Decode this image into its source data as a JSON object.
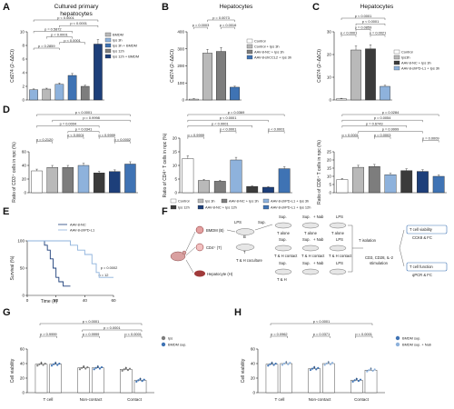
{
  "panel_letters": [
    "A",
    "B",
    "C",
    "D",
    "E",
    "F",
    "G",
    "H"
  ],
  "titles": {
    "A_line1": "Cultured primary",
    "A_line2": "hepatocytes",
    "B": "Hepatocytes",
    "C": "Hepatocytes"
  },
  "ylabels": {
    "cd274": "Cd274 (2−ΔΔCt)",
    "cd3": "Ratio of CD3⁺ cells in npc (%)",
    "cd4": "Ratio of CD4⁺ T cells in npc (%)",
    "cd8": "Ratio of CD8⁺ T cells in npc (%)",
    "survival": "Survival (%)",
    "viability": "Cell viability",
    "time": "Time (h)"
  },
  "colors": {
    "ctrl": "#ffffff",
    "ips": "#b9b9b9",
    "ips_dark": "#7d7d7d",
    "bmdm": "#3b3b3b",
    "blue_light": "#8eb2dc",
    "blue_mid": "#3f73b4",
    "blue_dark": "#1d3f7a",
    "line_dark": "#1d3f7a",
    "line_light": "#8eb2dc"
  },
  "legendA": [
    "BMDM",
    "Ips 3h",
    "Ips 3h + BMDM",
    "Ips 12h",
    "Ips 12h + BMDM"
  ],
  "legendB": [
    "Control",
    "Control + Ips 3h",
    "AAV-8-NC + Ips 3h",
    "AAV-8-shCCL2 + Ips 3h"
  ],
  "legendC": [
    "Control",
    "Ips3h",
    "AAV-8-NC + Ips 3h",
    "AAV-8-shPD-L1 + Ips 3h"
  ],
  "legendD": [
    "Control",
    "Ips 3h",
    "AAV-8-NC + Ips 3h",
    "AAV-8-shPD-L1 + Ips 3h",
    "Ips 12h",
    "AAV-8-NC + Ips 12h",
    "AAV-8-shPD-L1 + Ips 12h"
  ],
  "legendE": [
    "AAV-8-NC",
    "AAV-8-shPD-L1"
  ],
  "legendG": [
    "Ips",
    "BMDM sup."
  ],
  "legendH": [
    "BMDM sup.",
    "BMDM sup. + Nab"
  ],
  "sigA": [
    "p < 0.0001",
    "p < 0.0001",
    "p = 0.5872",
    "p < 0.0001",
    "p < 0.0001",
    "p = 0.2859"
  ],
  "sigB": [
    "p = 0.0073",
    "p = 0.0003",
    "p = 0.0016"
  ],
  "sigC": [
    "p < 0.0001",
    "p < 0.0001",
    "p = 0.0859",
    "p < 0.0001",
    "p = 0.0021"
  ],
  "sigD1": [
    "p < 0.0001",
    "p = 0.9998",
    "p = 0.0004",
    "p = 0.0341",
    "p = 0.2120",
    "p < 0.0001",
    "p = 0.9999",
    "p = 0.0002"
  ],
  "sigD2": [
    "p = 0.0369",
    "p < 0.0001",
    "p < 0.0001",
    "p < 0.0001",
    "p < 0.0001",
    "p = 0.9999"
  ],
  "sigD3": [
    "p = 0.0284",
    "p = 0.0054",
    "p = 0.6743",
    "p = 0.9999",
    "p < 0.0001",
    "p = 0.0003",
    "p = 0.0009"
  ],
  "sigE": [
    "p = 0.0002",
    "n = 12"
  ],
  "sigG": [
    "p < 0.0001",
    "p = 0.0001",
    "p > 0.9999",
    "p = 0.9999",
    "p < 0.0001"
  ],
  "sigH": [
    "p < 0.0001",
    "p = 0.0962",
    "p = 0.0371",
    "p < 0.0001"
  ],
  "groupsGH": [
    "T cell",
    "Non-contact",
    "Contact"
  ],
  "schematic": {
    "bmdm": "BMDM (B)",
    "cd4": "CD4⁺ (T)",
    "hep": "Hepatocyte (H)",
    "lps": "LPS",
    "sup": "Sup.",
    "coculture": "T & H coculture",
    "nab": "+ Nab",
    "talone": "T alone",
    "th_contact": "T & H contact",
    "th_noncontact": "T & H\nNon-contact",
    "tiso": "T isolation",
    "stim1": "CD3, CD28, IL-2",
    "stim2": "stimulation",
    "via1": "T cell viability",
    "via2": "CCK8 & FC",
    "fun1": "T cell function",
    "fun2": "qPCR & FC",
    "b_label": "B",
    "t_label": "T"
  },
  "chart_data": [
    {
      "panel": "A",
      "type": "bar",
      "title": "Cultured primary hepatocytes",
      "ylabel": "Cd274 (2−ΔΔCt)",
      "ylim": [
        0,
        10
      ],
      "categories": [
        "Control",
        "BMDM",
        "Ips 3h",
        "Ips 3h + BMDM",
        "Ips 12h",
        "Ips 12h + BMDM"
      ],
      "values": [
        1.5,
        1.6,
        2.3,
        3.6,
        2.0,
        8.2
      ]
    },
    {
      "panel": "B",
      "type": "bar",
      "title": "Hepatocytes",
      "ylabel": "Cd274 (2−ΔΔCt)",
      "ylim": [
        0,
        400
      ],
      "categories": [
        "Control",
        "Control + Ips 3h",
        "AAV-8-NC + Ips 3h",
        "AAV-8-shCCL2 + Ips 3h"
      ],
      "values": [
        5,
        275,
        285,
        75
      ]
    },
    {
      "panel": "C",
      "type": "bar",
      "title": "Hepatocytes",
      "ylabel": "Cd274 (2−ΔΔCt)",
      "ylim": [
        0,
        30
      ],
      "categories": [
        "Control",
        "Ips3h",
        "AAV-8-NC + Ips 3h",
        "AAV-8-shPD-L1 + Ips 3h"
      ],
      "values": [
        0.5,
        22,
        22.5,
        6
      ]
    },
    {
      "panel": "D1",
      "type": "bar",
      "ylabel": "Ratio of CD3⁺ cells in npc (%)",
      "ylim": [
        0,
        60
      ],
      "categories": [
        "Control",
        "Ips 3h",
        "AAV-8-NC + Ips 3h",
        "AAV-8-shPD-L1 + Ips 3h",
        "Ips 12h",
        "AAV-8-NC + Ips 12h",
        "AAV-8-shPD-L1 + Ips 12h"
      ],
      "values": [
        32,
        37,
        37,
        40,
        29,
        31,
        42
      ]
    },
    {
      "panel": "D2",
      "type": "bar",
      "ylabel": "Ratio of CD4⁺ T cells in npc (%)",
      "ylim": [
        0,
        20
      ],
      "categories": [
        "Control",
        "Ips 3h",
        "AAV-8-NC + Ips 3h",
        "AAV-8-shPD-L1 + Ips 3h",
        "Ips 12h",
        "AAV-8-NC + Ips 12h",
        "AAV-8-shPD-L1 + Ips 12h"
      ],
      "values": [
        12.5,
        4.5,
        4.2,
        12,
        2.3,
        2,
        8.8
      ]
    },
    {
      "panel": "D3",
      "type": "bar",
      "ylabel": "Ratio of CD8⁺ T cells in npc (%)",
      "ylim": [
        0,
        25
      ],
      "categories": [
        "Control",
        "Ips 3h",
        "AAV-8-NC + Ips 3h",
        "AAV-8-shPD-L1 + Ips 3h",
        "Ips 12h",
        "AAV-8-NC + Ips 12h",
        "AAV-8-shPD-L1 + Ips 12h"
      ],
      "values": [
        8,
        15.5,
        16,
        11,
        13.5,
        13,
        10
      ]
    },
    {
      "panel": "E",
      "type": "line",
      "xlabel": "Time (h)",
      "ylabel": "Survival (%)",
      "xlim": [
        0,
        60
      ],
      "ylim": [
        0,
        100
      ],
      "series": [
        {
          "name": "AAV-8-NC",
          "x": [
            0,
            12,
            14,
            16,
            18,
            20,
            22,
            25,
            30
          ],
          "y": [
            100,
            92,
            83,
            67,
            50,
            33,
            25,
            17,
            17
          ]
        },
        {
          "name": "AAV-8-shPD-L1",
          "x": [
            0,
            25,
            30,
            35,
            40,
            45,
            48,
            50,
            60
          ],
          "y": [
            100,
            100,
            92,
            83,
            75,
            58,
            42,
            33,
            33
          ]
        }
      ]
    },
    {
      "panel": "G",
      "type": "bar",
      "ylabel": "Cell viability",
      "ylim": [
        0,
        60
      ],
      "categories": [
        "T cell",
        "Non-contact",
        "Contact"
      ],
      "series": [
        {
          "name": "Ips",
          "values": [
            39,
            34,
            32
          ]
        },
        {
          "name": "BMDM sup.",
          "values": [
            39,
            34,
            17
          ]
        }
      ]
    },
    {
      "panel": "H",
      "type": "bar",
      "ylabel": "Cell viability",
      "ylim": [
        0,
        60
      ],
      "categories": [
        "T cell",
        "Non-contact",
        "Contact"
      ],
      "series": [
        {
          "name": "BMDM sup.",
          "values": [
            39,
            33,
            17
          ]
        },
        {
          "name": "BMDM sup. + Nab",
          "values": [
            40,
            40,
            31
          ]
        }
      ]
    }
  ]
}
